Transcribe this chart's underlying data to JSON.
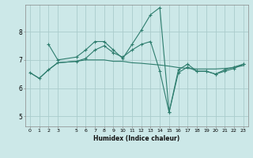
{
  "title": "",
  "xlabel": "Humidex (Indice chaleur)",
  "bg_color": "#cce8e8",
  "grid_color": "#aacccc",
  "line_color": "#2e7d6e",
  "xlim": [
    -0.5,
    23.5
  ],
  "ylim": [
    4.65,
    8.95
  ],
  "xticks": [
    0,
    1,
    2,
    3,
    5,
    6,
    7,
    8,
    9,
    10,
    11,
    12,
    13,
    14,
    15,
    16,
    17,
    18,
    19,
    20,
    21,
    22,
    23
  ],
  "yticks": [
    5,
    6,
    7,
    8
  ],
  "series": {
    "line1_x": [
      2,
      3,
      5,
      6,
      7,
      8,
      9,
      10,
      11,
      12,
      13,
      14,
      15,
      16,
      17,
      18,
      19,
      20,
      21,
      22,
      23
    ],
    "line1_y": [
      7.55,
      7.0,
      7.1,
      7.35,
      7.65,
      7.65,
      7.35,
      7.05,
      7.55,
      8.05,
      8.6,
      8.85,
      5.15,
      6.65,
      6.85,
      6.6,
      6.6,
      6.5,
      6.65,
      6.75,
      6.85
    ],
    "line2_x": [
      0,
      1,
      2,
      3,
      5,
      6,
      7,
      8,
      9,
      10,
      11,
      12,
      13,
      14,
      15,
      16,
      17,
      18,
      19,
      20,
      21,
      22,
      23
    ],
    "line2_y": [
      6.55,
      6.35,
      6.65,
      6.9,
      6.95,
      7.0,
      7.0,
      7.0,
      6.95,
      6.95,
      6.9,
      6.88,
      6.85,
      6.82,
      6.78,
      6.73,
      6.7,
      6.68,
      6.68,
      6.68,
      6.7,
      6.73,
      6.8
    ],
    "line3_x": [
      0,
      1,
      2,
      3,
      5,
      6,
      7,
      8,
      9,
      10,
      11,
      12,
      13,
      14,
      15,
      16,
      17,
      18,
      19,
      20,
      21,
      22,
      23
    ],
    "line3_y": [
      6.55,
      6.35,
      6.65,
      6.9,
      6.95,
      7.05,
      7.35,
      7.5,
      7.25,
      7.1,
      7.35,
      7.55,
      7.65,
      6.6,
      5.15,
      6.55,
      6.75,
      6.6,
      6.6,
      6.5,
      6.6,
      6.7,
      6.85
    ]
  }
}
